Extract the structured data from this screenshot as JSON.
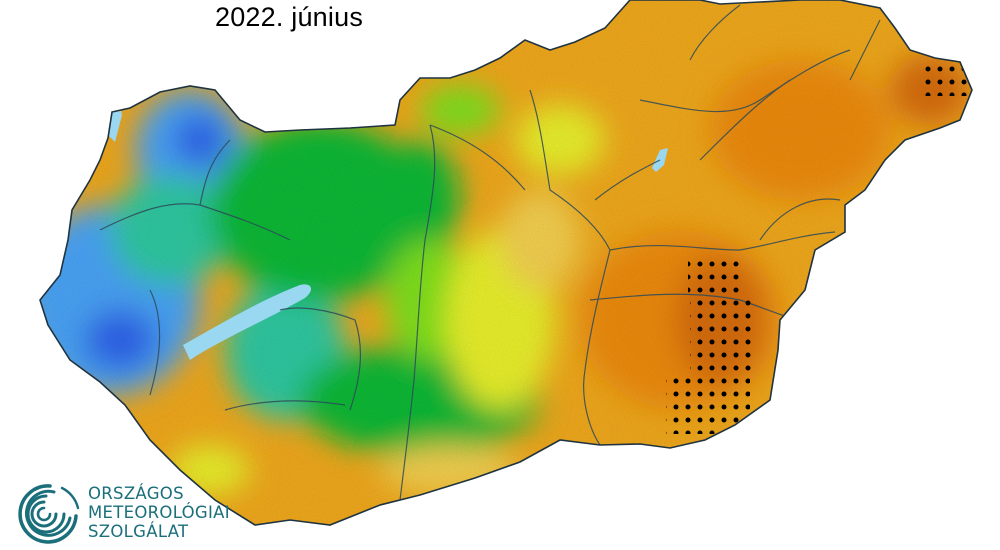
{
  "title": "2022. június",
  "organization": {
    "line1": "ORSZÁGOS",
    "line2": "METEOROLÓGIAI",
    "line3": "SZOLGÁLAT",
    "logo_icon": "omsz-spiral-logo-icon",
    "logo_color": "#1a6f7b"
  },
  "map": {
    "country": "Hungary",
    "color_scale": [
      "#2f63ea",
      "#4aa3f5",
      "#2fc7a0",
      "#10b836",
      "#7fe01f",
      "#e8ef2a",
      "#f3cf4f",
      "#efa81c",
      "#ec8a07",
      "#d66c0a"
    ],
    "boundary_color": "#2d4a5a",
    "lake_color": "#9ad7f0",
    "stipple_color": "#000000",
    "stipple_meaning_shown": false
  }
}
